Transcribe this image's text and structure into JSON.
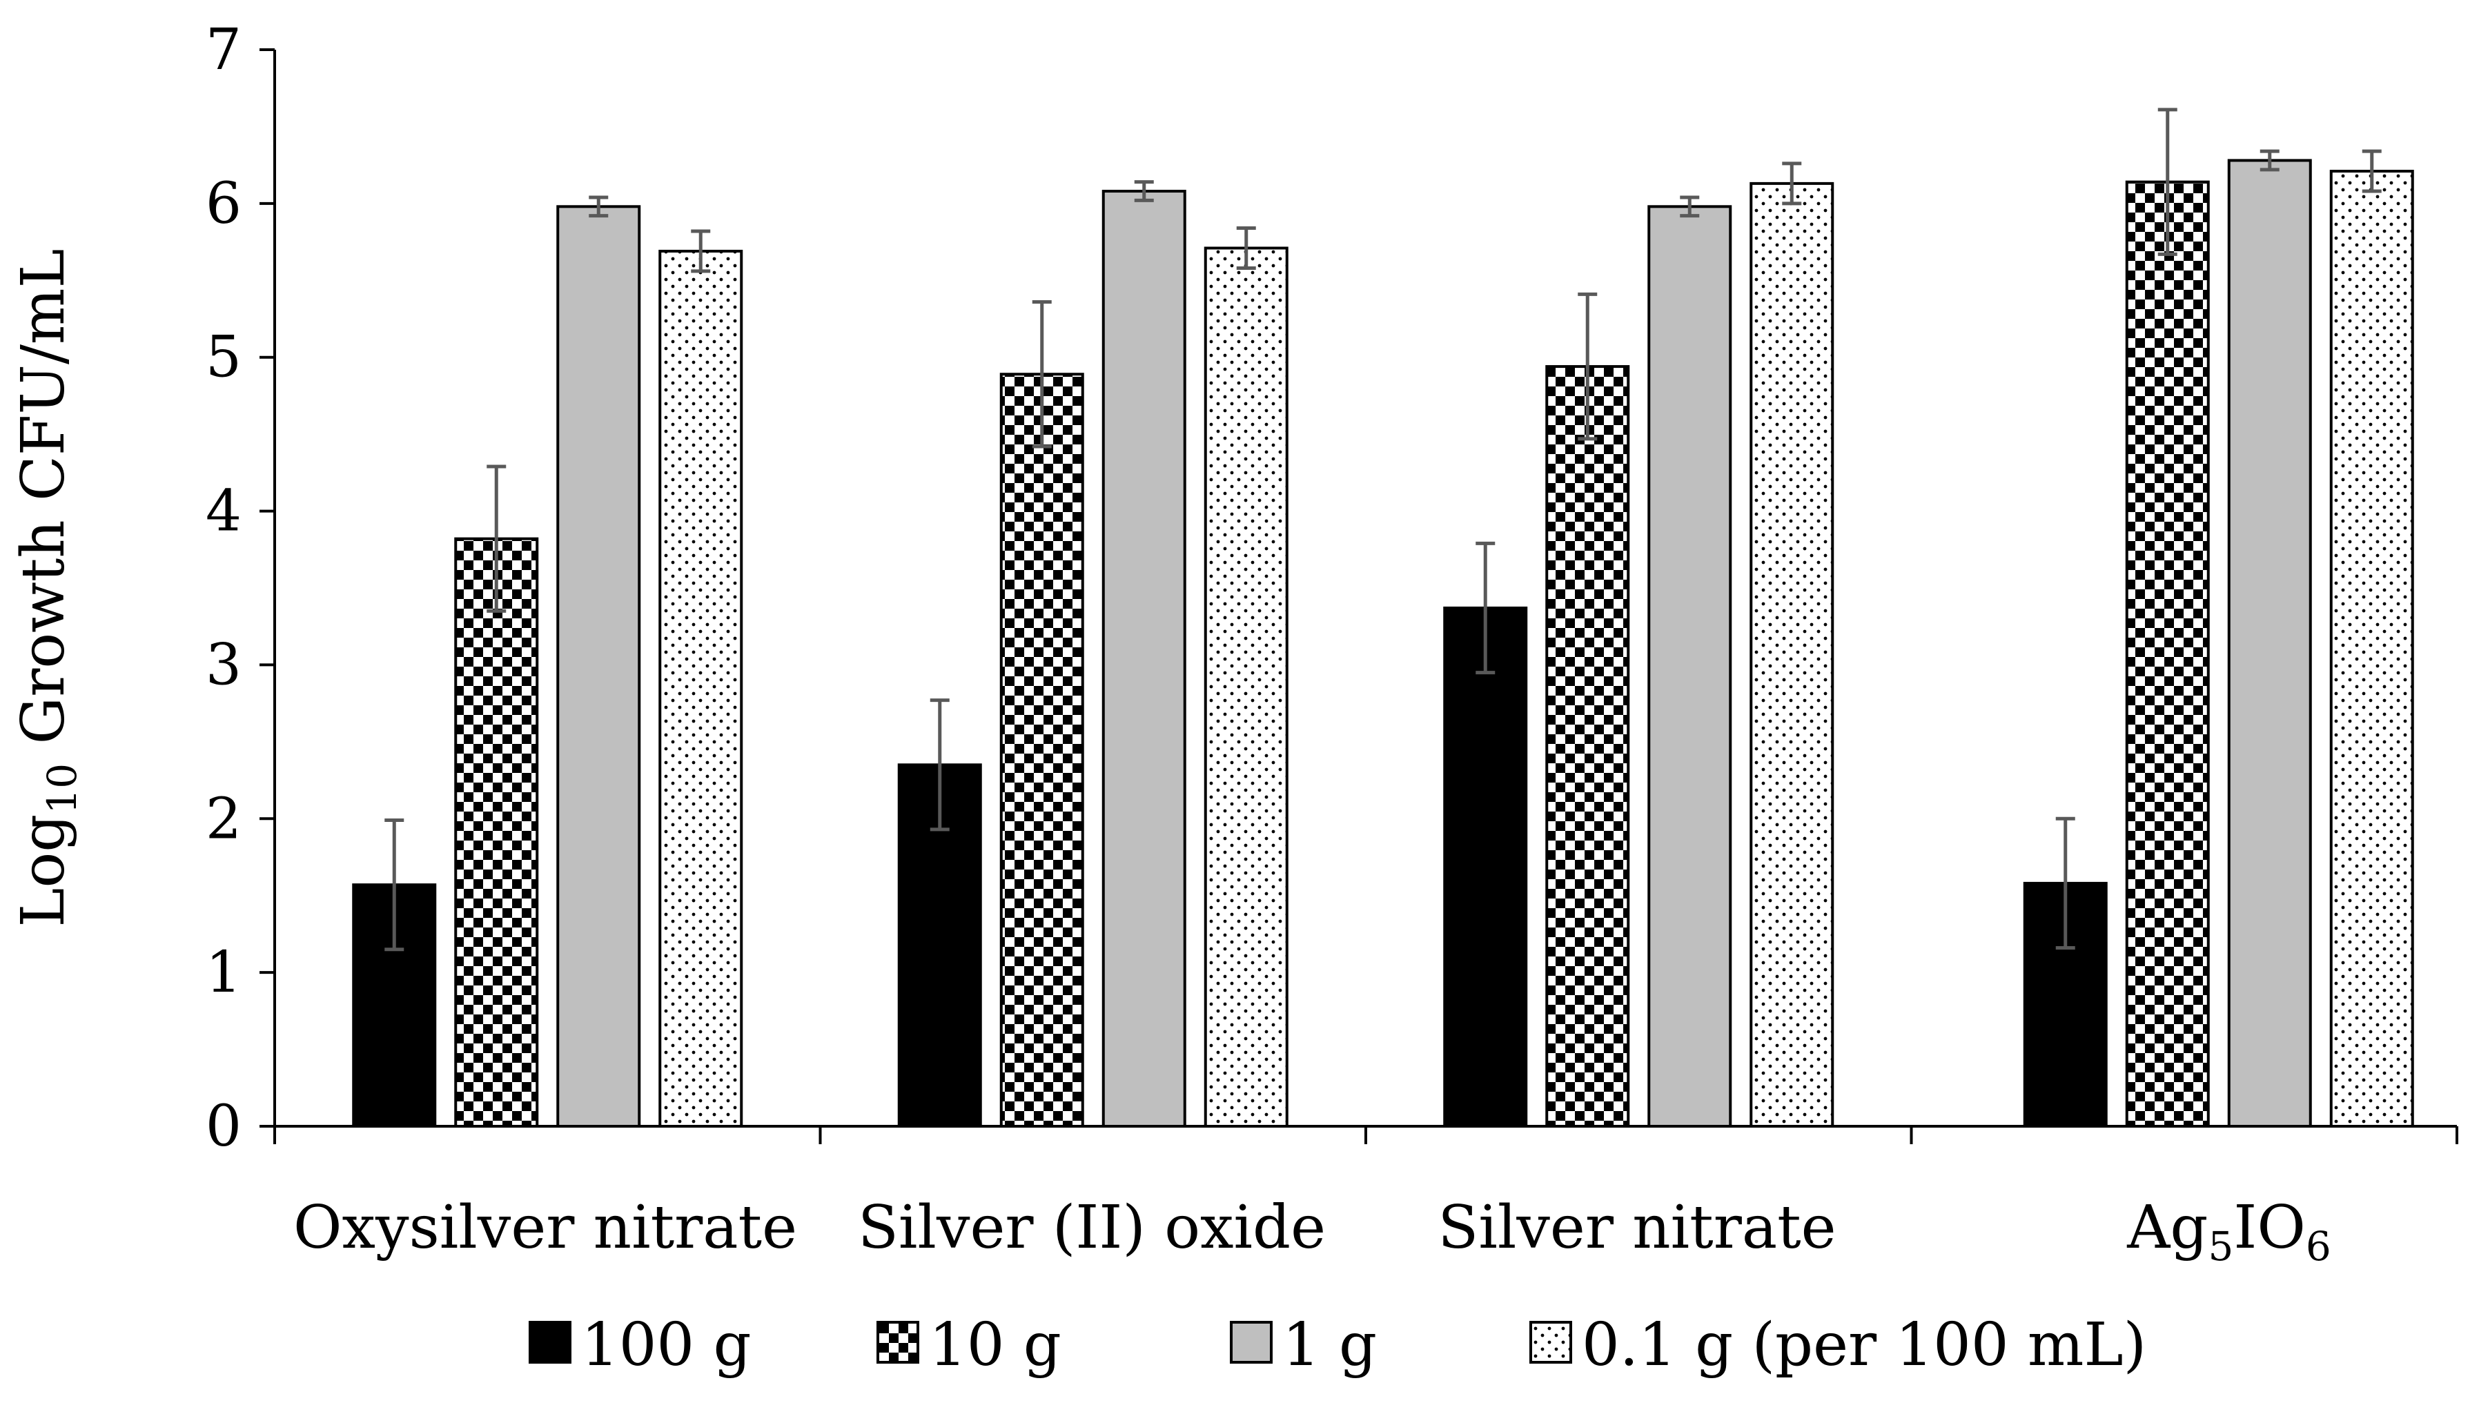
{
  "chart_data": {
    "type": "bar",
    "title": "",
    "xlabel": "",
    "ylabel_parts": [
      "Log",
      "10",
      " Growth CFU/mL"
    ],
    "ylim": [
      0,
      7
    ],
    "yticks": [
      "0",
      "1",
      "2",
      "3",
      "4",
      "5",
      "6",
      "7"
    ],
    "categories": [
      {
        "parts": [
          {
            "text": "Oxysilver nitrate",
            "sub": false
          }
        ]
      },
      {
        "parts": [
          {
            "text": "Silver (II) oxide",
            "sub": false
          }
        ]
      },
      {
        "parts": [
          {
            "text": "Silver nitrate",
            "sub": false
          }
        ]
      },
      {
        "parts": [
          {
            "text": "Ag",
            "sub": false
          },
          {
            "text": "5",
            "sub": true
          },
          {
            "text": "IO",
            "sub": false
          },
          {
            "text": "6",
            "sub": true
          }
        ]
      }
    ],
    "series": [
      {
        "name": "100 g",
        "pattern": "solid-black",
        "values": [
          1.57,
          2.35,
          3.37,
          1.58
        ],
        "errors": [
          0.42,
          0.42,
          0.42,
          0.42
        ]
      },
      {
        "name": "10 g",
        "pattern": "checker",
        "values": [
          3.82,
          4.89,
          4.94,
          6.14
        ],
        "errors": [
          0.47,
          0.47,
          0.47,
          0.47
        ]
      },
      {
        "name": "1 g",
        "pattern": "solid-gray",
        "values": [
          5.98,
          6.08,
          5.98,
          6.28
        ],
        "errors": [
          0.06,
          0.06,
          0.06,
          0.06
        ]
      },
      {
        "name": "0.1 g (per 100 mL)",
        "pattern": "dots",
        "values": [
          5.69,
          5.71,
          6.13,
          6.21
        ],
        "errors": [
          0.13,
          0.13,
          0.13,
          0.13
        ]
      }
    ],
    "legend_position": "bottom",
    "grid": false,
    "colors": {
      "black": "#000000",
      "gray": "#bfbfbf",
      "error_bar": "#595959",
      "axis": "#000000"
    }
  }
}
